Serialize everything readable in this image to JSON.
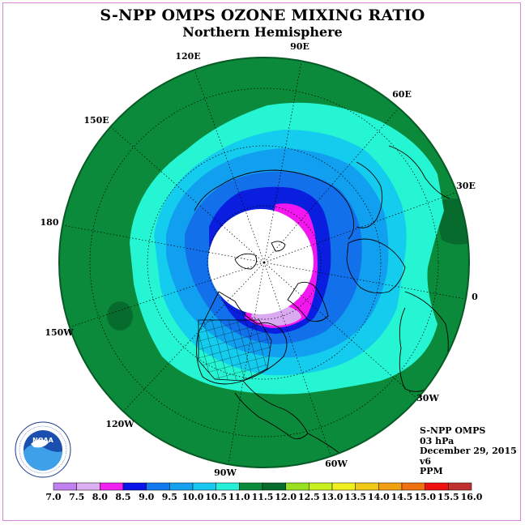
{
  "header": {
    "title": "S-NPP OMPS OZONE MIXING RATIO",
    "subtitle": "Northern Hemisphere"
  },
  "map": {
    "projection": "north-polar-stereographic",
    "longitude_labels": [
      "90E",
      "60E",
      "30E",
      "0",
      "30W",
      "60W",
      "90W",
      "120W",
      "150W",
      "180",
      "150E",
      "120E"
    ],
    "colors": {
      "ocean_background": "#0a8a3a",
      "dark_green": "#086b2e",
      "aquamarine": "#26f5d3",
      "cyan": "#14cdee",
      "sky_blue": "#119fef",
      "medium_blue": "#1270ea",
      "blue": "#0a1ee0",
      "magenta": "#f216ef",
      "lavender": "#d9aaf0",
      "polar_night": "#ffffff"
    }
  },
  "info": {
    "instrument": "S-NPP OMPS",
    "level": "03 hPa",
    "date": "December 29, 2015",
    "version": "v6",
    "units": "PPM"
  },
  "colorbar": {
    "labels": [
      "7.0",
      "7.5",
      "8.0",
      "8.5",
      "9.0",
      "9.5",
      "10.0",
      "10.5",
      "11.0",
      "11.5",
      "12.0",
      "12.5",
      "13.0",
      "13.5",
      "14.0",
      "14.5",
      "15.0",
      "15.5",
      "16.0"
    ],
    "colors": [
      "#c080f0",
      "#dcb0f0",
      "#f020f0",
      "#0a14e8",
      "#1278ee",
      "#15a0f0",
      "#18c8f0",
      "#28f0d8",
      "#0a8a3a",
      "#086b2e",
      "#98e020",
      "#c8f020",
      "#f0f020",
      "#f0c818",
      "#f0a010",
      "#f07010",
      "#f01010",
      "#c03030",
      "#805030"
    ]
  },
  "logo": {
    "text": "NOAA",
    "ring_text": "NATIONAL OCEANIC AND ATMOSPHERIC ADMINISTRATION · U.S. DEPARTMENT OF COMMERCE"
  }
}
